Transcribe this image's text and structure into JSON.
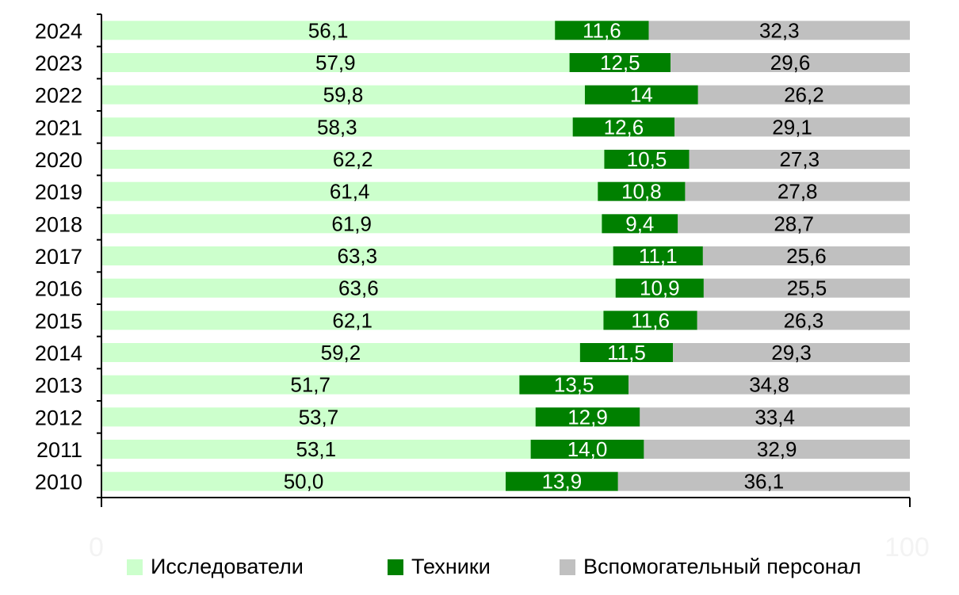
{
  "chart_data": {
    "type": "bar",
    "orientation": "horizontal",
    "stacked": true,
    "categories": [
      "2024",
      "2023",
      "2022",
      "2021",
      "2020",
      "2019",
      "2018",
      "2017",
      "2016",
      "2015",
      "2014",
      "2013",
      "2012",
      "2011",
      "2010"
    ],
    "series": [
      {
        "name": "Исследователи",
        "color": "#ccffcc",
        "values": [
          56.1,
          57.9,
          59.8,
          58.3,
          62.2,
          61.4,
          61.9,
          63.3,
          63.6,
          62.1,
          59.2,
          51.7,
          53.7,
          53.1,
          50.0
        ],
        "labels": [
          "56,1",
          "57,9",
          "59,8",
          "58,3",
          "62,2",
          "61,4",
          "61,9",
          "63,3",
          "63,6",
          "62,1",
          "59,2",
          "51,7",
          "53,7",
          "53,1",
          "50,0"
        ]
      },
      {
        "name": "Техники",
        "color": "#008000",
        "values": [
          11.6,
          12.5,
          14,
          12.6,
          10.5,
          10.8,
          9.4,
          11.1,
          10.9,
          11.6,
          11.5,
          13.5,
          12.9,
          14.0,
          13.9
        ],
        "labels": [
          "11,6",
          "12,5",
          "14",
          "12,6",
          "10,5",
          "10,8",
          "9,4",
          "11,1",
          "10,9",
          "11,6",
          "11,5",
          "13,5",
          "12,9",
          "14,0",
          "13,9"
        ]
      },
      {
        "name": "Вспомогательный персонал",
        "color": "#c0c0c0",
        "values": [
          32.3,
          29.6,
          26.2,
          29.1,
          27.3,
          27.8,
          28.7,
          25.6,
          25.5,
          26.3,
          29.3,
          34.8,
          33.4,
          32.9,
          36.1
        ],
        "labels": [
          "32,3",
          "29,6",
          "26,2",
          "29,1",
          "27,3",
          "27,8",
          "28,7",
          "25,6",
          "25,5",
          "26,3",
          "29,3",
          "34,8",
          "33,4",
          "32,9",
          "36,1"
        ]
      }
    ],
    "xlim": [
      0,
      100
    ],
    "x_tick_labels": [
      "0",
      "100"
    ],
    "legend_position": "bottom",
    "grid": false
  }
}
